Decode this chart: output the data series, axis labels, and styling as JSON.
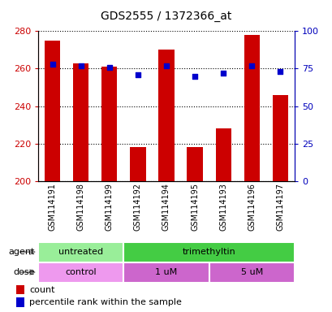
{
  "title": "GDS2555 / 1372366_at",
  "samples": [
    "GSM114191",
    "GSM114198",
    "GSM114199",
    "GSM114192",
    "GSM114194",
    "GSM114195",
    "GSM114193",
    "GSM114196",
    "GSM114197"
  ],
  "counts": [
    275,
    263,
    261,
    218,
    270,
    218,
    228,
    278,
    246
  ],
  "percentiles": [
    78,
    77,
    76,
    71,
    77,
    70,
    72,
    77,
    73
  ],
  "ylim_left": [
    200,
    280
  ],
  "ylim_right": [
    0,
    100
  ],
  "yticks_left": [
    200,
    220,
    240,
    260,
    280
  ],
  "yticks_right": [
    0,
    25,
    50,
    75,
    100
  ],
  "bar_color": "#CC0000",
  "dot_color": "#0000CC",
  "left_tick_color": "#CC0000",
  "right_tick_color": "#0000BB",
  "grid_color": "black",
  "agent_groups": [
    {
      "label": "untreated",
      "start": 0,
      "end": 3,
      "color": "#99EE99"
    },
    {
      "label": "trimethyltin",
      "start": 3,
      "end": 9,
      "color": "#44CC44"
    }
  ],
  "dose_groups": [
    {
      "label": "control",
      "start": 0,
      "end": 3,
      "color": "#EE99EE"
    },
    {
      "label": "1 uM",
      "start": 3,
      "end": 6,
      "color": "#CC66CC"
    },
    {
      "label": "5 uM",
      "start": 6,
      "end": 9,
      "color": "#CC66CC"
    }
  ],
  "legend_count_label": "count",
  "legend_pct_label": "percentile rank within the sample",
  "bar_color_legend": "#CC0000",
  "dot_color_legend": "#0000CC",
  "background_color": "#FFFFFF"
}
